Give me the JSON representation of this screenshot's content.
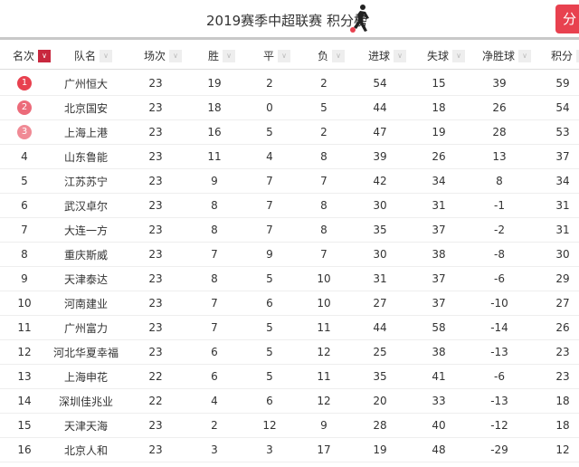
{
  "title": "2019赛季中超联赛 积分榜",
  "share_label": "分",
  "colors": {
    "accent": "#e8414f",
    "rank1": "#e8414f",
    "rank2": "#ec6b7a",
    "rank3": "#f08a95",
    "sort_active": "#c8283e"
  },
  "headers": [
    "名次",
    "队名",
    "场次",
    "胜",
    "平",
    "负",
    "进球",
    "失球",
    "净胜球",
    "积分"
  ],
  "rows": [
    [
      "1",
      "广州恒大",
      "23",
      "19",
      "2",
      "2",
      "54",
      "15",
      "39",
      "59"
    ],
    [
      "2",
      "北京国安",
      "23",
      "18",
      "0",
      "5",
      "44",
      "18",
      "26",
      "54"
    ],
    [
      "3",
      "上海上港",
      "23",
      "16",
      "5",
      "2",
      "47",
      "19",
      "28",
      "53"
    ],
    [
      "4",
      "山东鲁能",
      "23",
      "11",
      "4",
      "8",
      "39",
      "26",
      "13",
      "37"
    ],
    [
      "5",
      "江苏苏宁",
      "23",
      "9",
      "7",
      "7",
      "42",
      "34",
      "8",
      "34"
    ],
    [
      "6",
      "武汉卓尔",
      "23",
      "8",
      "7",
      "8",
      "30",
      "31",
      "-1",
      "31"
    ],
    [
      "7",
      "大连一方",
      "23",
      "8",
      "7",
      "8",
      "35",
      "37",
      "-2",
      "31"
    ],
    [
      "8",
      "重庆斯威",
      "23",
      "7",
      "9",
      "7",
      "30",
      "38",
      "-8",
      "30"
    ],
    [
      "9",
      "天津泰达",
      "23",
      "8",
      "5",
      "10",
      "31",
      "37",
      "-6",
      "29"
    ],
    [
      "10",
      "河南建业",
      "23",
      "7",
      "6",
      "10",
      "27",
      "37",
      "-10",
      "27"
    ],
    [
      "11",
      "广州富力",
      "23",
      "7",
      "5",
      "11",
      "44",
      "58",
      "-14",
      "26"
    ],
    [
      "12",
      "河北华夏幸福",
      "23",
      "6",
      "5",
      "12",
      "25",
      "38",
      "-13",
      "23"
    ],
    [
      "13",
      "上海申花",
      "22",
      "6",
      "5",
      "11",
      "35",
      "41",
      "-6",
      "23"
    ],
    [
      "14",
      "深圳佳兆业",
      "22",
      "4",
      "6",
      "12",
      "20",
      "33",
      "-13",
      "18"
    ],
    [
      "15",
      "天津天海",
      "23",
      "2",
      "12",
      "9",
      "28",
      "40",
      "-12",
      "18"
    ],
    [
      "16",
      "北京人和",
      "23",
      "3",
      "3",
      "17",
      "19",
      "48",
      "-29",
      "12"
    ]
  ]
}
